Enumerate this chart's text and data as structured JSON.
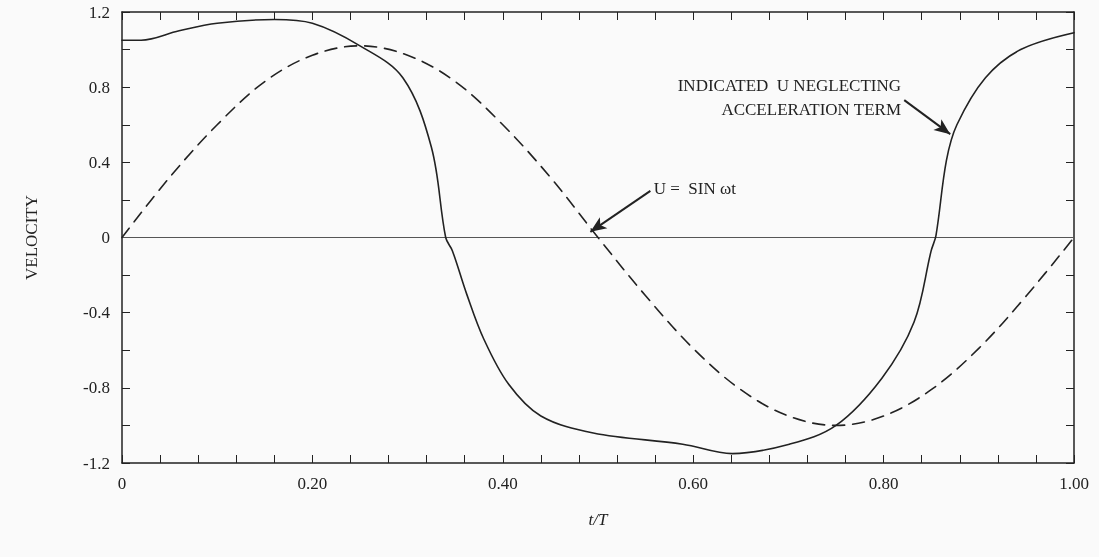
{
  "chart_data": {
    "type": "line",
    "xlabel": "t/T",
    "ylabel": "VELOCITY",
    "x": [
      0,
      0.02,
      0.06,
      0.1,
      0.16,
      0.2,
      0.25,
      0.295,
      0.325,
      0.34,
      0.347,
      0.362,
      0.38,
      0.406,
      0.44,
      0.495,
      0.589,
      0.641,
      0.701,
      0.75,
      0.798,
      0.832,
      0.85,
      0.855,
      0.866,
      0.877,
      0.907,
      0.944,
      1
    ],
    "series": [
      {
        "color": "#222222",
        "line_style": "solid",
        "values": [
          1.05,
          1.05,
          1.1,
          1.14,
          1.16,
          1.14,
          1.02,
          0.85,
          0.48,
          0,
          -0.07,
          -0.3,
          -0.54,
          -0.78,
          -0.95,
          -1.04,
          -1.1,
          -1.15,
          -1.1,
          -1,
          -0.75,
          -0.45,
          -0.07,
          0.01,
          0.41,
          0.6,
          0.85,
          1,
          1.09
        ]
      },
      {
        "color": "#222222",
        "line_style": "dashed",
        "x": [
          0,
          0.05,
          0.1,
          0.15,
          0.2,
          0.25,
          0.3,
          0.35,
          0.4,
          0.45,
          0.5,
          0.55,
          0.6,
          0.65,
          0.7,
          0.75,
          0.8,
          0.85,
          0.9,
          0.95,
          1
        ],
        "values": [
          0,
          0.32,
          0.6,
          0.83,
          0.97,
          1.02,
          0.97,
          0.83,
          0.6,
          0.32,
          0,
          -0.31,
          -0.59,
          -0.81,
          -0.95,
          -1,
          -0.95,
          -0.81,
          -0.59,
          -0.31,
          0
        ]
      }
    ],
    "xlim": [
      0,
      1
    ],
    "xticks": [
      0,
      {
        "value": 0.04,
        "label": null
      },
      {
        "value": 0.08,
        "label": null
      },
      {
        "value": 0.12,
        "label": null
      },
      {
        "value": 0.16,
        "label": null
      },
      {
        "value": 0.2,
        "label": "0.20"
      },
      {
        "value": 0.24,
        "label": null
      },
      {
        "value": 0.28,
        "label": null
      },
      {
        "value": 0.32,
        "label": null
      },
      {
        "value": 0.36,
        "label": null
      },
      {
        "value": 0.4,
        "label": "0.40"
      },
      {
        "value": 0.44,
        "label": null
      },
      {
        "value": 0.48,
        "label": null
      },
      {
        "value": 0.52,
        "label": null
      },
      {
        "value": 0.56,
        "label": null
      },
      {
        "value": 0.6,
        "label": "0.60"
      },
      {
        "value": 0.64,
        "label": null
      },
      {
        "value": 0.68,
        "label": null
      },
      {
        "value": 0.72,
        "label": null
      },
      {
        "value": 0.76,
        "label": null
      },
      {
        "value": 0.8,
        "label": "0.80"
      },
      {
        "value": 0.84,
        "label": null
      },
      {
        "value": 0.88,
        "label": null
      },
      {
        "value": 0.92,
        "label": null
      },
      {
        "value": 0.96,
        "label": null
      },
      {
        "value": 1,
        "label": "1.00"
      }
    ],
    "ylim": [
      -1.2,
      1.2
    ],
    "yticks": [
      -1.2,
      {
        "value": -1,
        "label": null
      },
      -0.8,
      {
        "value": -0.6,
        "label": null
      },
      -0.4,
      {
        "value": -0.2,
        "label": null
      },
      0,
      {
        "value": 0.2,
        "label": null
      },
      0.4,
      {
        "value": 0.6,
        "label": null
      },
      0.8,
      {
        "value": 1,
        "label": null
      },
      1.2
    ],
    "ref_lines": [
      {
        "axis": "y",
        "value": 0,
        "label": null
      }
    ],
    "annotations": [
      {
        "text": "INDICATED  U NEGLECTING\nACCELERATION TERM",
        "x": 0.87,
        "y": 0.55
      },
      {
        "text": "U =  SIN ωt",
        "x": 0.492,
        "y": 0.03
      }
    ],
    "grid": false
  }
}
